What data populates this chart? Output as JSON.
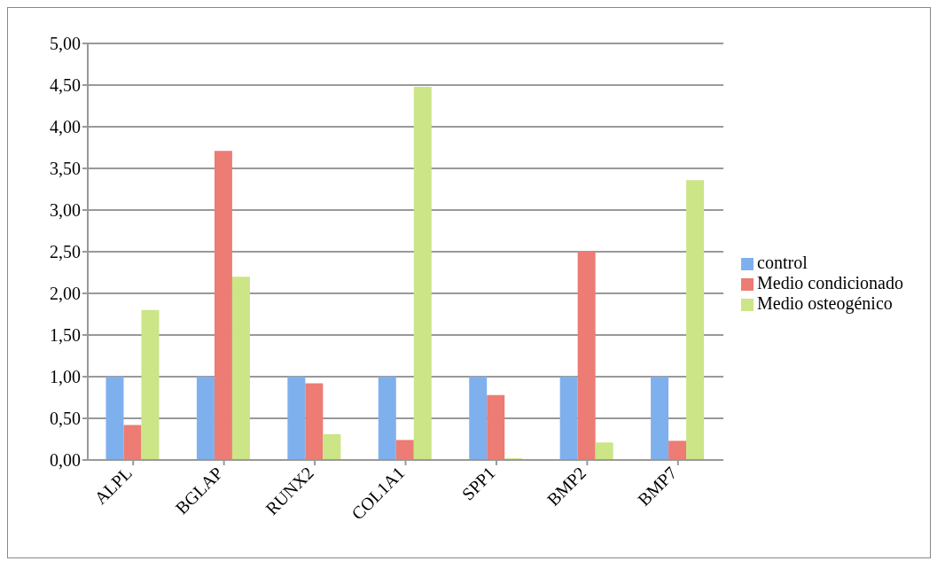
{
  "chart_data": {
    "type": "bar",
    "categories": [
      "ALPL",
      "BGLAP",
      "RUNX2",
      "COL1A1",
      "SPP1",
      "BMP2",
      "BMP7"
    ],
    "series": [
      {
        "name": "control",
        "color": "#7fb0ee",
        "values": [
          1,
          1,
          1,
          1,
          1,
          1,
          1
        ]
      },
      {
        "name": "Medio condicionado",
        "color": "#ec7c74",
        "values": [
          0.42,
          3.71,
          0.92,
          0.24,
          0.78,
          2.5,
          0.23
        ]
      },
      {
        "name": "Medio osteogénico",
        "color": "#cbe587",
        "values": [
          1.8,
          2.2,
          0.31,
          4.48,
          0.02,
          0.21,
          3.36
        ]
      }
    ],
    "ylim": [
      0,
      5
    ],
    "yticks": [
      {
        "value": 0,
        "label": "0,00"
      },
      {
        "value": 0.5,
        "label": "0,50"
      },
      {
        "value": 1,
        "label": "1,00"
      },
      {
        "value": 1.5,
        "label": "1,50"
      },
      {
        "value": 2,
        "label": "2,00"
      },
      {
        "value": 2.5,
        "label": "2,50"
      },
      {
        "value": 3,
        "label": "3,00"
      },
      {
        "value": 3.5,
        "label": "3,50"
      },
      {
        "value": 4,
        "label": "4,00"
      },
      {
        "value": 4.5,
        "label": "4,50"
      },
      {
        "value": 5,
        "label": "5,00"
      }
    ],
    "grid": "y",
    "legend": "right"
  }
}
